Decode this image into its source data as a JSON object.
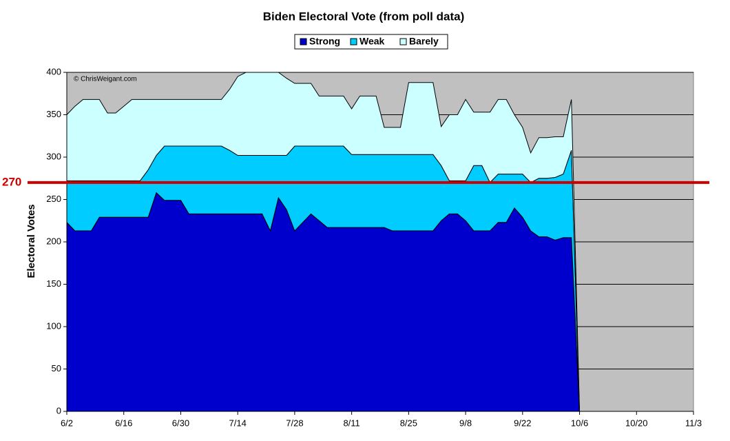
{
  "chart_data": {
    "type": "stacked-area",
    "title": "Biden Electoral Vote (from poll data)",
    "y_label": "Electoral Votes",
    "annotation": "© ChrisWeigant.com",
    "categories": [
      "6/2",
      null,
      null,
      null,
      null,
      null,
      null,
      "6/16",
      null,
      null,
      null,
      null,
      null,
      null,
      "6/30",
      null,
      null,
      null,
      null,
      null,
      null,
      "7/14",
      null,
      null,
      null,
      null,
      null,
      null,
      "7/28",
      null,
      null,
      null,
      null,
      null,
      null,
      "8/11",
      null,
      null,
      null,
      null,
      null,
      null,
      "8/25",
      null,
      null,
      null,
      null,
      null,
      null,
      "9/8",
      null,
      null,
      null,
      null,
      null,
      null,
      "9/22",
      null,
      null,
      null,
      null,
      null,
      null,
      "10/6",
      null,
      null,
      null,
      null,
      null,
      null,
      "10/20",
      null,
      null,
      null,
      null,
      null,
      null,
      "11/3"
    ],
    "series": [
      {
        "name": "Strong",
        "color": "#0000cc",
        "values": [
          223,
          213,
          213,
          213,
          229,
          229,
          229,
          229,
          229,
          229,
          229,
          258,
          249,
          249,
          249,
          233,
          233,
          233,
          233,
          233,
          233,
          233,
          233,
          233,
          233,
          213,
          252,
          238,
          213,
          223,
          233,
          225,
          217,
          217,
          217,
          217,
          217,
          217,
          217,
          217,
          213,
          213,
          213,
          213,
          213,
          213,
          225,
          233,
          233,
          225,
          213,
          213,
          213,
          223,
          223,
          240,
          229,
          213,
          206,
          206,
          202,
          205,
          205,
          0,
          null,
          null,
          null,
          null,
          null,
          null,
          null,
          null,
          null,
          null,
          null,
          null,
          null,
          null
        ]
      },
      {
        "name": "Weak",
        "color": "#00ccff",
        "values": [
          49,
          59,
          59,
          59,
          43,
          43,
          43,
          43,
          43,
          43,
          56,
          44,
          64,
          64,
          64,
          80,
          80,
          80,
          80,
          80,
          75,
          69,
          69,
          69,
          69,
          89,
          50,
          64,
          100,
          90,
          80,
          88,
          96,
          96,
          96,
          86,
          86,
          86,
          86,
          86,
          90,
          90,
          90,
          90,
          90,
          90,
          65,
          39,
          39,
          47,
          77,
          77,
          57,
          57,
          57,
          40,
          51,
          57,
          69,
          69,
          74,
          75,
          103,
          0,
          null,
          null,
          null,
          null,
          null,
          null,
          null,
          null,
          null,
          null,
          null,
          null,
          null,
          null
        ]
      },
      {
        "name": "Barely",
        "color": "#ccffff",
        "values": [
          78,
          88,
          96,
          96,
          96,
          80,
          80,
          88,
          96,
          96,
          83,
          66,
          55,
          55,
          55,
          55,
          55,
          55,
          55,
          55,
          72,
          93,
          98,
          98,
          98,
          98,
          98,
          91,
          74,
          74,
          74,
          59,
          59,
          59,
          59,
          54,
          69,
          69,
          69,
          32,
          32,
          32,
          85,
          85,
          85,
          85,
          46,
          78,
          78,
          96,
          63,
          63,
          83,
          88,
          88,
          70,
          55,
          35,
          48,
          48,
          48,
          44,
          60,
          0,
          null,
          null,
          null,
          null,
          null,
          null,
          null,
          null,
          null,
          null,
          null,
          null,
          null,
          null
        ]
      }
    ],
    "ylim": [
      0,
      400
    ],
    "yticks": [
      0,
      50,
      100,
      150,
      200,
      250,
      300,
      350,
      400
    ],
    "grid": true,
    "background": "#c0c0c0",
    "hline": {
      "value": 270,
      "label": "270",
      "color": "#cc0000"
    }
  }
}
